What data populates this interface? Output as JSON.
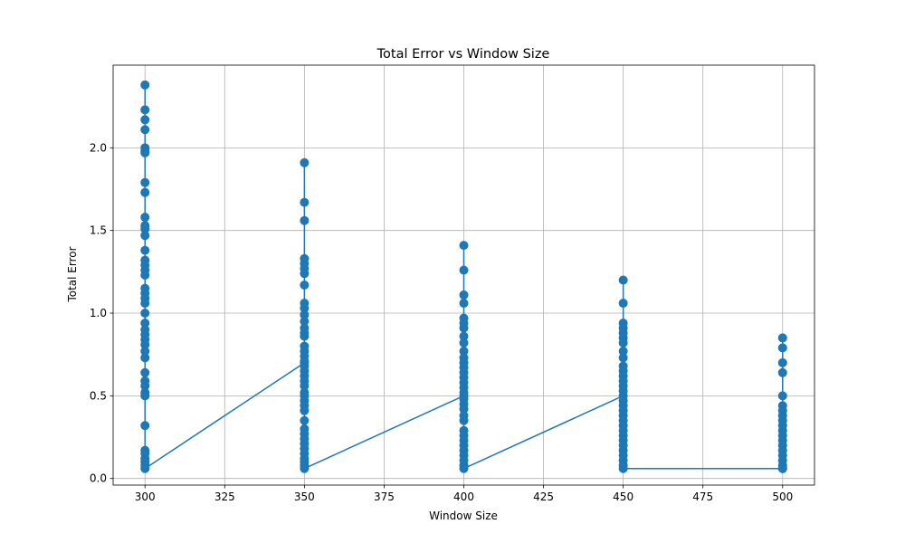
{
  "chart_data": {
    "type": "line",
    "title": "Total Error vs Window Size",
    "xlabel": "Window Size",
    "ylabel": "Total Error",
    "xlim": [
      290,
      510
    ],
    "ylim": [
      -0.04,
      2.5
    ],
    "xticks": [
      300,
      325,
      350,
      375,
      400,
      425,
      450,
      475,
      500
    ],
    "yticks": [
      0.0,
      0.5,
      1.0,
      1.5,
      2.0
    ],
    "grid": true,
    "series_color": "#1f77b4",
    "groups": [
      {
        "x": 300,
        "values": [
          1.06,
          2.38,
          2.23,
          2.17,
          2.11,
          2.0,
          1.98,
          1.97,
          1.79,
          1.73,
          1.58,
          1.53,
          1.51,
          1.47,
          1.38,
          1.32,
          1.29,
          1.26,
          1.23,
          1.15,
          1.12,
          1.09,
          1.0,
          0.94,
          0.9,
          0.87,
          0.84,
          0.81,
          0.77,
          0.73,
          0.64,
          0.59,
          0.56,
          0.52,
          0.5,
          0.32,
          0.17,
          0.15,
          0.12,
          0.1,
          0.08,
          0.06
        ]
      },
      {
        "x": 350,
        "values": [
          0.7,
          1.91,
          1.67,
          1.56,
          1.33,
          1.3,
          1.27,
          1.24,
          1.17,
          1.06,
          1.03,
          0.99,
          0.95,
          0.91,
          0.88,
          0.86,
          0.8,
          0.77,
          0.74,
          0.71,
          0.68,
          0.65,
          0.62,
          0.59,
          0.56,
          0.52,
          0.5,
          0.47,
          0.44,
          0.41,
          0.35,
          0.3,
          0.27,
          0.24,
          0.21,
          0.18,
          0.15,
          0.12,
          0.1,
          0.08,
          0.06
        ]
      },
      {
        "x": 400,
        "values": [
          0.5,
          1.41,
          1.26,
          1.11,
          1.06,
          0.97,
          0.94,
          0.91,
          0.86,
          0.82,
          0.77,
          0.73,
          0.7,
          0.67,
          0.64,
          0.61,
          0.58,
          0.55,
          0.52,
          0.48,
          0.45,
          0.42,
          0.38,
          0.35,
          0.29,
          0.26,
          0.23,
          0.2,
          0.17,
          0.14,
          0.11,
          0.08,
          0.06
        ]
      },
      {
        "x": 450,
        "values": [
          0.5,
          1.2,
          1.06,
          0.94,
          0.91,
          0.88,
          0.85,
          0.82,
          0.77,
          0.73,
          0.68,
          0.65,
          0.62,
          0.59,
          0.56,
          0.53,
          0.47,
          0.44,
          0.41,
          0.38,
          0.35,
          0.32,
          0.29,
          0.26,
          0.23,
          0.2,
          0.17,
          0.14,
          0.11,
          0.08,
          0.06
        ]
      },
      {
        "x": 500,
        "values": [
          0.06,
          0.85,
          0.79,
          0.7,
          0.64,
          0.5,
          0.44,
          0.41,
          0.38,
          0.35,
          0.32,
          0.29,
          0.26,
          0.23,
          0.2,
          0.17,
          0.14,
          0.11,
          0.08,
          0.06
        ]
      }
    ]
  }
}
